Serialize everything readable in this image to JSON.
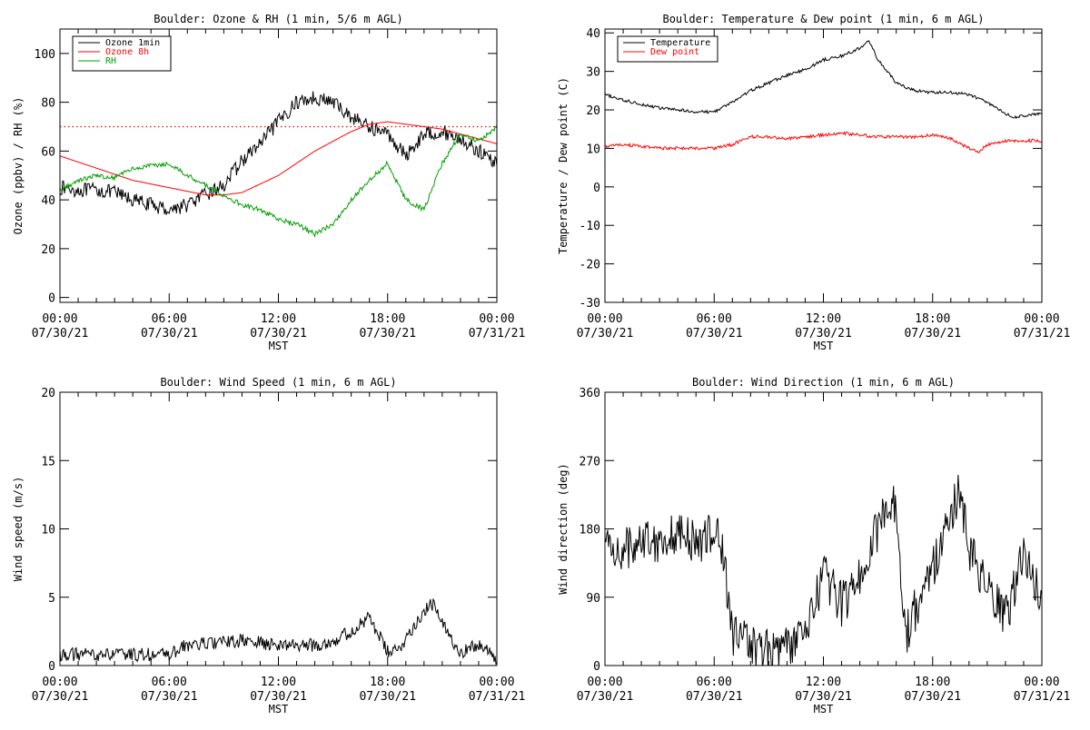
{
  "chart_data": [
    {
      "type": "line",
      "title": "Boulder: Ozone & RH (1 min, 5/6 m AGL)",
      "ylabel": "Ozone (ppbv) / RH (%)",
      "xlabel": "MST",
      "xlim": [
        "07/30/21 00:00",
        "07/31/21 00:00"
      ],
      "ylim": [
        -2,
        110
      ],
      "yticks": [
        0,
        20,
        40,
        60,
        80,
        100
      ],
      "xticks": [
        {
          "time": "00:00",
          "date": "07/30/21"
        },
        {
          "time": "06:00",
          "date": "07/30/21"
        },
        {
          "time": "12:00",
          "date": "07/30/21"
        },
        {
          "time": "18:00",
          "date": "07/30/21"
        },
        {
          "time": "00:00",
          "date": "07/31/21"
        }
      ],
      "legend": "top-left",
      "reference_line": {
        "y": 70,
        "color": "#ff0000",
        "style": "dotted"
      },
      "series": [
        {
          "name": "Ozone 1min",
          "color": "#000000",
          "noise": 3,
          "x": [
            0,
            1,
            2,
            3,
            4,
            5,
            6,
            7,
            8,
            9,
            10,
            11,
            12,
            13,
            14,
            15,
            16,
            17,
            18,
            19,
            20,
            21,
            22,
            23,
            24
          ],
          "y": [
            45,
            44,
            44,
            43,
            40,
            38,
            36,
            38,
            42,
            46,
            56,
            63,
            72,
            80,
            82,
            80,
            74,
            70,
            67,
            58,
            67,
            68,
            65,
            60,
            55
          ]
        },
        {
          "name": "Ozone 8h",
          "color": "#ff0000",
          "noise": 0,
          "x": [
            0,
            2,
            4,
            6,
            8,
            9,
            10,
            12,
            14,
            16,
            17,
            18,
            19,
            20,
            21,
            22,
            23,
            24
          ],
          "y": [
            58,
            53,
            48,
            45,
            42,
            42,
            43,
            50,
            60,
            68,
            71,
            72,
            71,
            70,
            69,
            67,
            65,
            63
          ]
        },
        {
          "name": "RH",
          "color": "#00a000",
          "noise": 1,
          "x": [
            0,
            1,
            2,
            3,
            4,
            5,
            6,
            7,
            8,
            9,
            10,
            11,
            12,
            13,
            14,
            15,
            16,
            17,
            18,
            19,
            20,
            21,
            22,
            23,
            24
          ],
          "y": [
            44,
            48,
            50,
            49,
            53,
            54,
            55,
            50,
            46,
            42,
            38,
            36,
            32,
            30,
            26,
            30,
            40,
            48,
            55,
            40,
            36,
            55,
            67,
            64,
            70
          ]
        }
      ]
    },
    {
      "type": "line",
      "title": "Boulder: Temperature & Dew point (1 min, 6 m AGL)",
      "ylabel": "Temperature / Dew point (C)",
      "xlabel": "MST",
      "xlim": [
        "07/30/21 00:00",
        "07/31/21 00:00"
      ],
      "ylim": [
        -30,
        41
      ],
      "yticks": [
        -30,
        -20,
        -10,
        0,
        10,
        20,
        30,
        40
      ],
      "xticks": [
        {
          "time": "00:00",
          "date": "07/30/21"
        },
        {
          "time": "06:00",
          "date": "07/30/21"
        },
        {
          "time": "12:00",
          "date": "07/30/21"
        },
        {
          "time": "18:00",
          "date": "07/30/21"
        },
        {
          "time": "00:00",
          "date": "07/31/21"
        }
      ],
      "legend": "top-left",
      "series": [
        {
          "name": "Temperature",
          "color": "#000000",
          "noise": 0.4,
          "x": [
            0,
            1,
            2,
            3,
            4,
            5,
            6,
            7,
            8,
            9,
            10,
            11,
            12,
            13,
            14,
            14.5,
            15,
            16,
            17,
            18,
            19,
            20,
            21,
            22,
            22.5,
            23,
            24
          ],
          "y": [
            24,
            22.5,
            21.5,
            20.5,
            20,
            19.5,
            19.5,
            22,
            25,
            27,
            29,
            30.5,
            33,
            34,
            36,
            38,
            33,
            27,
            25,
            24.5,
            24.5,
            24,
            22,
            19,
            18,
            18.5,
            19
          ]
        },
        {
          "name": "Dew point",
          "color": "#ff0000",
          "noise": 0.4,
          "x": [
            0,
            1,
            2,
            3,
            4,
            5,
            6,
            7,
            8,
            9,
            10,
            11,
            12,
            13,
            14,
            15,
            16,
            17,
            18,
            19,
            20,
            20.5,
            21,
            22,
            23,
            24
          ],
          "y": [
            10.5,
            11,
            10.5,
            10,
            10,
            10,
            10,
            11,
            13,
            13,
            12.5,
            13,
            13.5,
            14,
            13.5,
            13,
            13,
            13,
            13.5,
            12.5,
            10,
            9,
            11,
            12,
            12,
            12
          ]
        }
      ]
    },
    {
      "type": "line",
      "title": "Boulder: Wind Speed (1 min, 6 m AGL)",
      "ylabel": "Wind speed (m/s)",
      "xlabel": "MST",
      "xlim": [
        "07/30/21 00:00",
        "07/31/21 00:00"
      ],
      "ylim": [
        0,
        20
      ],
      "yticks": [
        0,
        5,
        10,
        15,
        20
      ],
      "xticks": [
        {
          "time": "00:00",
          "date": "07/30/21"
        },
        {
          "time": "06:00",
          "date": "07/30/21"
        },
        {
          "time": "12:00",
          "date": "07/30/21"
        },
        {
          "time": "18:00",
          "date": "07/30/21"
        },
        {
          "time": "00:00",
          "date": "07/31/21"
        }
      ],
      "series": [
        {
          "name": "",
          "color": "#000000",
          "noise": 0.5,
          "x": [
            0,
            2,
            4,
            6,
            7,
            8,
            10,
            12,
            14,
            15,
            16,
            17,
            18,
            18.5,
            19,
            20,
            20.5,
            21,
            22,
            23,
            24
          ],
          "y": [
            0.8,
            0.8,
            0.8,
            0.8,
            1.5,
            1.6,
            1.8,
            1.5,
            1.5,
            1.8,
            2.5,
            3.5,
            1,
            1,
            2,
            4,
            4.5,
            3,
            1,
            1.5,
            0.5
          ]
        }
      ]
    },
    {
      "type": "line",
      "title": "Boulder: Wind Direction (1 min, 6 m AGL)",
      "ylabel": "Wind direction (deg)",
      "xlabel": "MST",
      "xlim": [
        "07/30/21 00:00",
        "07/31/21 00:00"
      ],
      "ylim": [
        0,
        360
      ],
      "yticks": [
        0,
        90,
        180,
        270,
        360
      ],
      "xticks": [
        {
          "time": "00:00",
          "date": "07/30/21"
        },
        {
          "time": "06:00",
          "date": "07/30/21"
        },
        {
          "time": "12:00",
          "date": "07/30/21"
        },
        {
          "time": "18:00",
          "date": "07/30/21"
        },
        {
          "time": "00:00",
          "date": "07/31/21"
        }
      ],
      "series": [
        {
          "name": "",
          "color": "#000000",
          "noise": 30,
          "x": [
            0,
            1,
            2,
            3,
            4,
            5,
            6,
            6.5,
            7,
            8,
            9,
            10,
            11,
            12,
            13,
            14,
            15,
            16,
            16.5,
            17,
            18,
            19,
            19.5,
            20,
            21,
            22,
            23,
            24
          ],
          "y": [
            160,
            150,
            170,
            165,
            175,
            160,
            180,
            150,
            40,
            30,
            20,
            25,
            40,
            120,
            80,
            120,
            180,
            220,
            40,
            70,
            130,
            200,
            230,
            150,
            100,
            60,
            150,
            80
          ]
        }
      ]
    }
  ]
}
